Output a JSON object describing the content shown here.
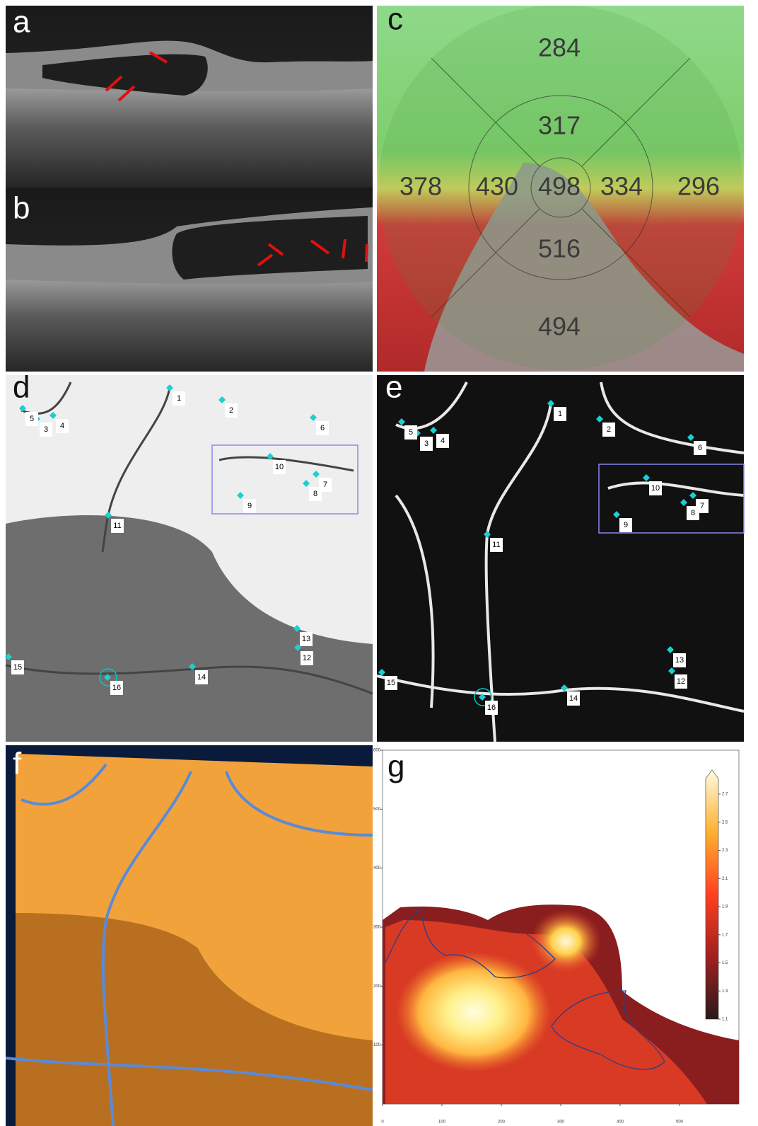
{
  "panel_labels": [
    "a",
    "b",
    "c",
    "d",
    "e",
    "f",
    "g"
  ],
  "thickness_map": {
    "superior_outer": 284,
    "superior_inner": 317,
    "temporal_outer": 378,
    "temporal_inner": 430,
    "center": 498,
    "nasal_inner": 334,
    "nasal_outer": 296,
    "inferior_inner": 516,
    "inferior_outer": 494
  },
  "landmarks_d": [
    1,
    2,
    3,
    4,
    5,
    6,
    7,
    8,
    9,
    10,
    11,
    12,
    13,
    14,
    15,
    16
  ],
  "landmarks_e": [
    1,
    2,
    3,
    4,
    5,
    6,
    7,
    8,
    9,
    10,
    11,
    12,
    13,
    14,
    15,
    16
  ],
  "panel_g": {
    "xticks": [
      0,
      100,
      200,
      300,
      400,
      500
    ],
    "yticks": [
      100,
      200,
      300,
      400,
      500,
      600
    ],
    "xlim": [
      0,
      600
    ],
    "ylim": [
      0,
      600
    ],
    "colorbar_ticks": [
      1.1,
      1.3,
      1.5,
      1.7,
      1.9,
      2.1,
      2.3,
      2.5,
      2.7
    ],
    "colorbar_lim": [
      1.1,
      2.7
    ]
  }
}
